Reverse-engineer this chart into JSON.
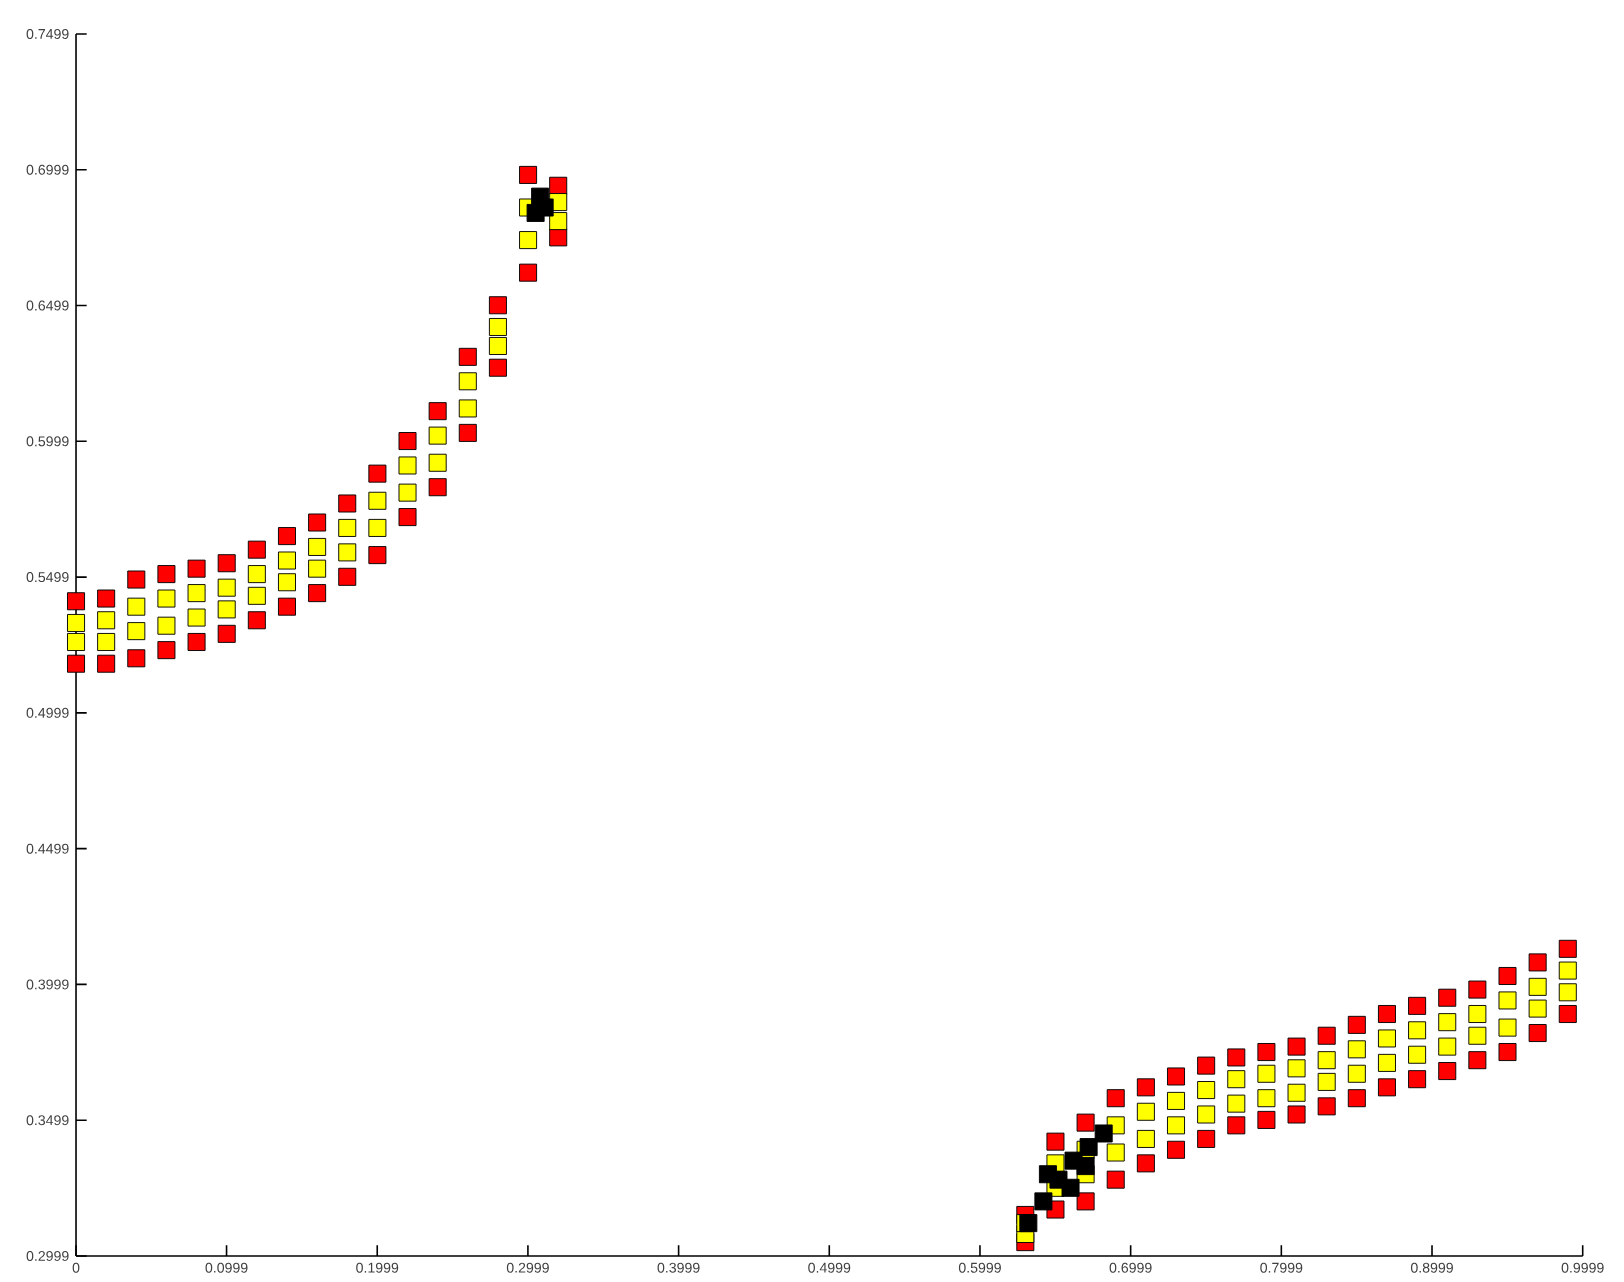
{
  "chart_data": {
    "type": "scatter",
    "marker": "square",
    "xlim": [
      0,
      0.9999
    ],
    "ylim": [
      0.2999,
      0.7499
    ],
    "xticks": [
      0,
      0.0999,
      0.1999,
      0.2999,
      0.3999,
      0.4999,
      0.5999,
      0.6999,
      0.7999,
      0.8999,
      0.9999
    ],
    "yticks": [
      0.2999,
      0.3499,
      0.3999,
      0.4499,
      0.4999,
      0.5499,
      0.5999,
      0.6499,
      0.6999,
      0.7499
    ],
    "grid": false,
    "series": [
      {
        "color": "#ff0000",
        "x": [
          0,
          0.02,
          0.04,
          0.06,
          0.08,
          0.1,
          0.12,
          0.14,
          0.16,
          0.18,
          0.2,
          0.22,
          0.24,
          0.26,
          0.28,
          0.3,
          0.32,
          0,
          0.02,
          0.04,
          0.06,
          0.08,
          0.1,
          0.12,
          0.14,
          0.16,
          0.18,
          0.2,
          0.22,
          0.24,
          0.26,
          0.28,
          0.3,
          0.32,
          0.63,
          0.65,
          0.67,
          0.69,
          0.71,
          0.73,
          0.75,
          0.77,
          0.79,
          0.81,
          0.83,
          0.85,
          0.87,
          0.89,
          0.91,
          0.93,
          0.95,
          0.97,
          0.99,
          0.63,
          0.65,
          0.67,
          0.69,
          0.71,
          0.73,
          0.75,
          0.77,
          0.79,
          0.81,
          0.83,
          0.85,
          0.87,
          0.89,
          0.91,
          0.93,
          0.95,
          0.97,
          0.99
        ],
        "values": [
          0.541,
          0.542,
          0.549,
          0.551,
          0.553,
          0.555,
          0.56,
          0.565,
          0.57,
          0.577,
          0.588,
          0.6,
          0.611,
          0.631,
          0.65,
          0.698,
          0.694,
          0.518,
          0.518,
          0.52,
          0.523,
          0.526,
          0.529,
          0.534,
          0.539,
          0.544,
          0.55,
          0.558,
          0.572,
          0.583,
          0.603,
          0.627,
          0.662,
          0.675,
          0.315,
          0.342,
          0.349,
          0.358,
          0.362,
          0.366,
          0.37,
          0.373,
          0.375,
          0.377,
          0.381,
          0.385,
          0.389,
          0.392,
          0.395,
          0.398,
          0.403,
          0.408,
          0.413,
          0.305,
          0.317,
          0.32,
          0.328,
          0.334,
          0.339,
          0.343,
          0.348,
          0.35,
          0.352,
          0.355,
          0.358,
          0.362,
          0.365,
          0.368,
          0.372,
          0.375,
          0.382,
          0.389
        ]
      },
      {
        "color": "#ffff00",
        "x": [
          0,
          0.02,
          0.04,
          0.06,
          0.08,
          0.1,
          0.12,
          0.14,
          0.16,
          0.18,
          0.2,
          0.22,
          0.24,
          0.26,
          0.28,
          0.3,
          0.32,
          0,
          0.02,
          0.04,
          0.06,
          0.08,
          0.1,
          0.12,
          0.14,
          0.16,
          0.18,
          0.2,
          0.22,
          0.24,
          0.26,
          0.28,
          0.3,
          0.32,
          0.63,
          0.65,
          0.67,
          0.69,
          0.71,
          0.73,
          0.75,
          0.77,
          0.79,
          0.81,
          0.83,
          0.85,
          0.87,
          0.89,
          0.91,
          0.93,
          0.95,
          0.97,
          0.99,
          0.63,
          0.65,
          0.67,
          0.69,
          0.71,
          0.73,
          0.75,
          0.77,
          0.79,
          0.81,
          0.83,
          0.85,
          0.87,
          0.89,
          0.91,
          0.93,
          0.95,
          0.97,
          0.99
        ],
        "values": [
          0.526,
          0.526,
          0.53,
          0.532,
          0.535,
          0.538,
          0.543,
          0.548,
          0.553,
          0.559,
          0.568,
          0.581,
          0.592,
          0.612,
          0.635,
          0.674,
          0.681,
          0.533,
          0.534,
          0.539,
          0.542,
          0.544,
          0.546,
          0.551,
          0.556,
          0.561,
          0.568,
          0.578,
          0.591,
          0.602,
          0.622,
          0.642,
          0.686,
          0.688,
          0.308,
          0.325,
          0.33,
          0.338,
          0.343,
          0.348,
          0.352,
          0.356,
          0.358,
          0.36,
          0.364,
          0.367,
          0.371,
          0.374,
          0.377,
          0.381,
          0.384,
          0.391,
          0.397,
          0.312,
          0.334,
          0.339,
          0.348,
          0.353,
          0.357,
          0.361,
          0.365,
          0.367,
          0.369,
          0.372,
          0.376,
          0.38,
          0.383,
          0.386,
          0.389,
          0.394,
          0.399,
          0.405
        ]
      },
      {
        "color": "#000000",
        "x": [
          0.308,
          0.305,
          0.311,
          0.632,
          0.642,
          0.652,
          0.662,
          0.672,
          0.682,
          0.645,
          0.66,
          0.67
        ],
        "values": [
          0.69,
          0.684,
          0.686,
          0.312,
          0.32,
          0.328,
          0.335,
          0.34,
          0.345,
          0.33,
          0.325,
          0.333
        ]
      }
    ]
  }
}
